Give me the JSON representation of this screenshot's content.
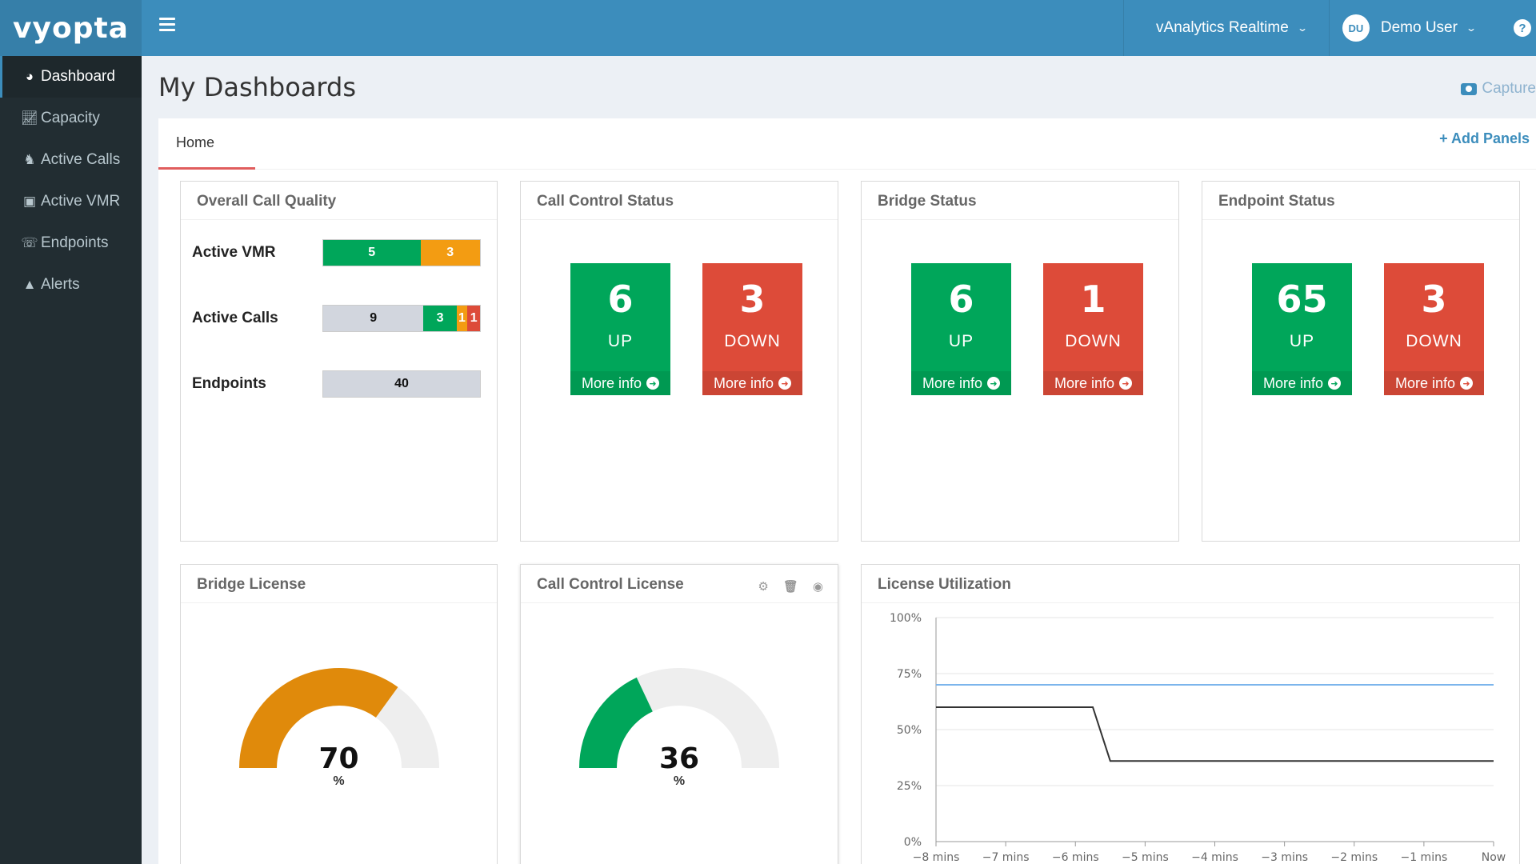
{
  "header": {
    "logo": "vyopta",
    "app_menu": "vAnalytics Realtime",
    "user_initials": "DU",
    "user_name": "Demo User",
    "help": "?"
  },
  "sidebar": {
    "items": [
      {
        "label": "Dashboard",
        "icon": "dashboard-icon"
      },
      {
        "label": "Capacity",
        "icon": "line-chart-icon"
      },
      {
        "label": "Active Calls",
        "icon": "people-icon"
      },
      {
        "label": "Active VMR",
        "icon": "monitor-icon"
      },
      {
        "label": "Endpoints",
        "icon": "phone-icon"
      },
      {
        "label": "Alerts",
        "icon": "warning-icon"
      }
    ]
  },
  "page": {
    "title": "My Dashboards",
    "capture": "Capture",
    "tab": "Home",
    "add_panels": "+ Add Panels"
  },
  "overall_call_quality": {
    "title": "Overall Call Quality",
    "rows": [
      {
        "label": "Active VMR",
        "segments": [
          {
            "value": "5",
            "color": "#00a65a",
            "share": 0.62
          },
          {
            "value": "3",
            "color": "#f39c12",
            "share": 0.38
          }
        ]
      },
      {
        "label": "Active Calls",
        "segments": [
          {
            "value": "9",
            "color": "grey",
            "share": 0.64
          },
          {
            "value": "3",
            "color": "#00a65a",
            "share": 0.21
          },
          {
            "value": "1",
            "color": "#f39c12",
            "share": 0.07
          },
          {
            "value": "1",
            "color": "#dd4b39",
            "share": 0.08
          }
        ]
      },
      {
        "label": "Endpoints",
        "segments": [
          {
            "value": "40",
            "color": "grey",
            "share": 1.0
          }
        ]
      }
    ]
  },
  "status_panels": [
    {
      "title": "Call Control Status",
      "up": "6",
      "down": "3"
    },
    {
      "title": "Bridge Status",
      "up": "6",
      "down": "1"
    },
    {
      "title": "Endpoint Status",
      "up": "65",
      "down": "3"
    }
  ],
  "status_labels": {
    "up": "UP",
    "down": "DOWN",
    "more": "More info"
  },
  "bridge_license": {
    "title": "Bridge License",
    "value": "70",
    "unit": "%",
    "fraction": 0.7,
    "color": "#e08a0b"
  },
  "call_control_license": {
    "title": "Call Control License",
    "value": "36",
    "unit": "%",
    "fraction": 0.36,
    "color": "#00a65a"
  },
  "chart_data": {
    "type": "line",
    "title": "License Utilization",
    "x": [
      "−8 mins",
      "−7 mins",
      "−6 mins",
      "−5 mins",
      "−4 mins",
      "−3 mins",
      "−2 mins",
      "−1 mins",
      "Now"
    ],
    "y_ticks": [
      "0%",
      "25%",
      "50%",
      "75%",
      "100%"
    ],
    "ylim": [
      0,
      100
    ],
    "series": [
      {
        "color": "#7cb5ec",
        "points": [
          [
            -8,
            70
          ],
          [
            0,
            70
          ]
        ]
      },
      {
        "color": "#333333",
        "points": [
          [
            -8,
            60
          ],
          [
            -5.75,
            60
          ],
          [
            -5.5,
            36
          ],
          [
            0,
            36
          ]
        ]
      }
    ]
  }
}
